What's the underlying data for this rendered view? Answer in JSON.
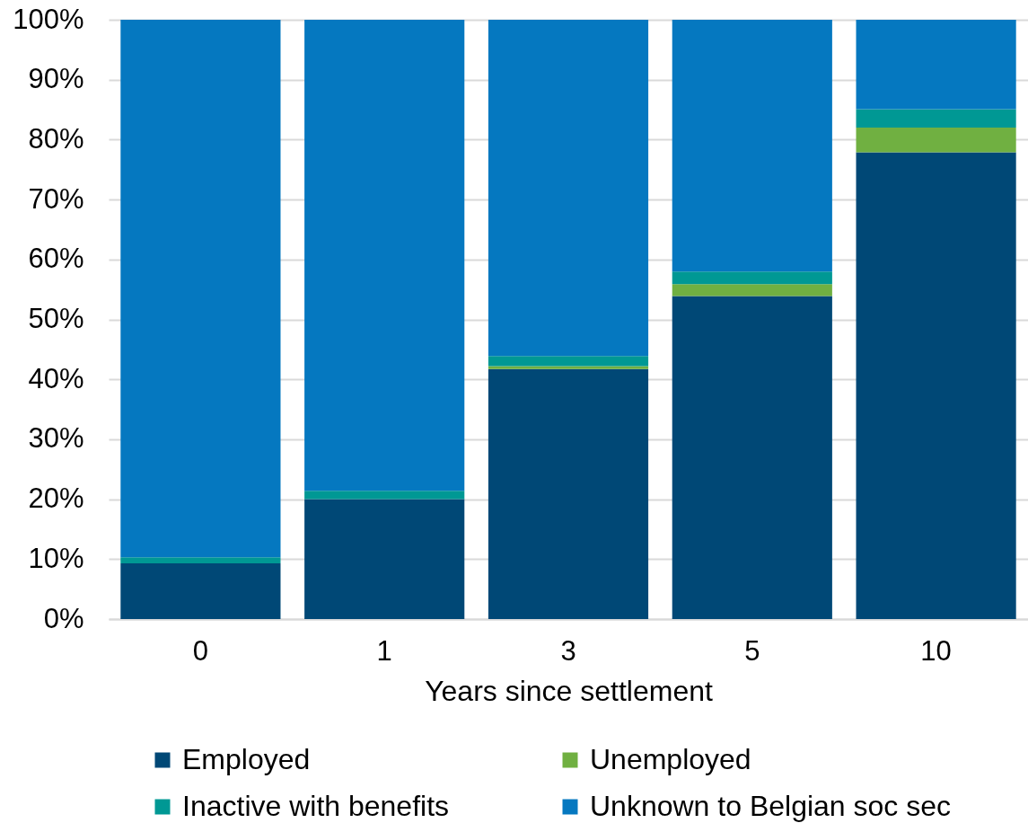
{
  "chart_data": {
    "type": "bar",
    "stacked": true,
    "categories": [
      "0",
      "1",
      "3",
      "5",
      "10"
    ],
    "series": [
      {
        "name": "Employed",
        "color": "#004876",
        "values": [
          9.3,
          20,
          41.7,
          53.9,
          77.9
        ]
      },
      {
        "name": "Unemployed",
        "color": "#70b041",
        "values": [
          0,
          0,
          0.5,
          2,
          4.1
        ]
      },
      {
        "name": "Inactive with benefits",
        "color": "#009894",
        "values": [
          1,
          1.4,
          1.7,
          2.1,
          3.1
        ]
      },
      {
        "name": "Unknown to Belgian soc sec",
        "color": "#0578c0",
        "values": [
          89.7,
          78.6,
          56.1,
          42,
          14.9
        ]
      }
    ],
    "xlabel": "Years since settlement",
    "ylim": [
      0,
      100
    ],
    "yticks": [
      {
        "value": 0,
        "label": "0%"
      },
      {
        "value": 10,
        "label": "10%"
      },
      {
        "value": 20,
        "label": "20%"
      },
      {
        "value": 30,
        "label": "30%"
      },
      {
        "value": 40,
        "label": "40%"
      },
      {
        "value": 50,
        "label": "50%"
      },
      {
        "value": 60,
        "label": "60%"
      },
      {
        "value": 70,
        "label": "70%"
      },
      {
        "value": 80,
        "label": "80%"
      },
      {
        "value": 90,
        "label": "90%"
      },
      {
        "value": 100,
        "label": "100%"
      }
    ],
    "grid": "y",
    "legend": "bottom"
  }
}
